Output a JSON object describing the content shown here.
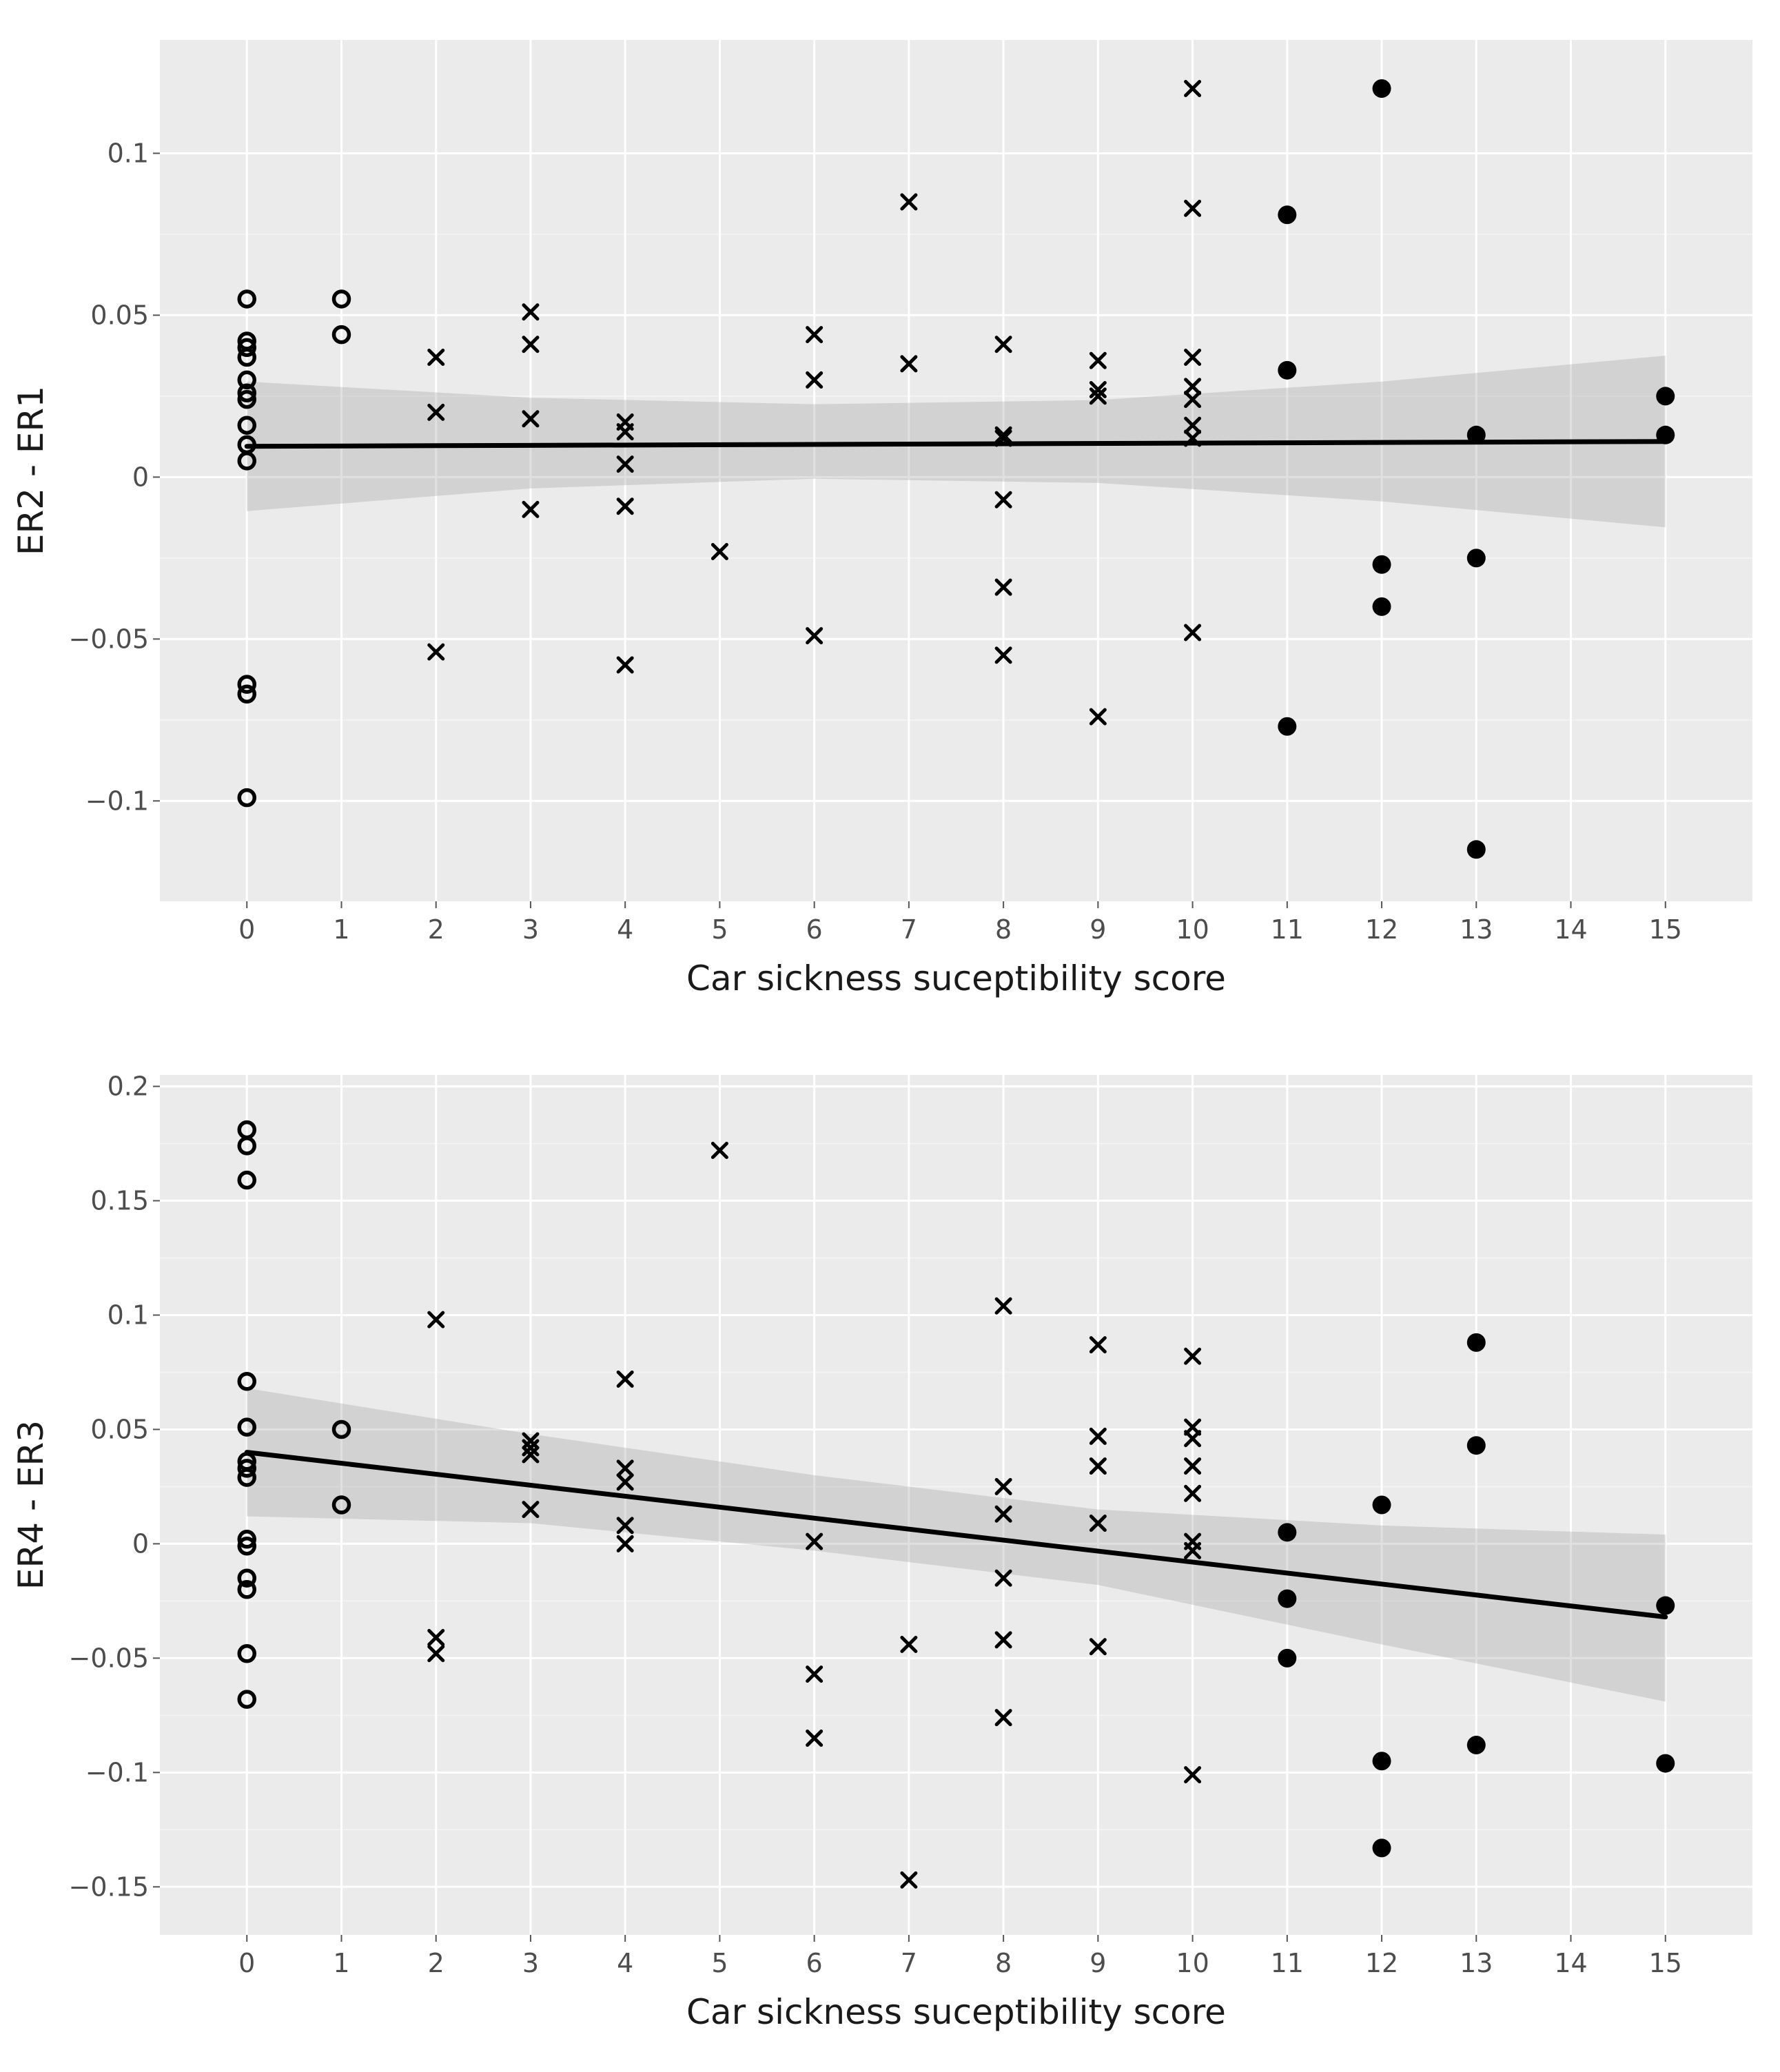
{
  "chart_data": [
    {
      "type": "scatter",
      "xlabel": "Car sickness suceptibility score",
      "ylabel": "ER2 - ER1",
      "xlim": [
        -0.92,
        15.92
      ],
      "ylim": [
        -0.131,
        0.135
      ],
      "xticks": [
        0,
        1,
        2,
        3,
        4,
        5,
        6,
        7,
        8,
        9,
        10,
        11,
        12,
        13,
        14,
        15
      ],
      "yticks": [
        0.1,
        0.05,
        0,
        -0.05,
        -0.1
      ],
      "ytick_labels": [
        "0.1",
        "0.05",
        "0",
        "−0.05",
        "−0.1"
      ],
      "grid": true,
      "fit_line": {
        "x0": 0,
        "y0": 0.0095,
        "x1": 15,
        "y1": 0.011
      },
      "confidence_band": {
        "x": [
          0,
          3,
          6,
          9,
          12,
          15
        ],
        "upper": [
          0.0295,
          0.0245,
          0.0225,
          0.0238,
          0.0295,
          0.0375
        ],
        "lower": [
          -0.0105,
          -0.0035,
          -0.0005,
          -0.0018,
          -0.0075,
          -0.0155
        ]
      },
      "series": [
        {
          "name": "open circle",
          "marker": "circle-open",
          "points": [
            [
              0,
              0.055
            ],
            [
              0,
              0.042
            ],
            [
              0,
              0.04
            ],
            [
              0,
              0.037
            ],
            [
              0,
              0.03
            ],
            [
              0,
              0.026
            ],
            [
              0,
              0.024
            ],
            [
              0,
              0.016
            ],
            [
              0,
              0.01
            ],
            [
              0,
              0.005
            ],
            [
              0,
              -0.064
            ],
            [
              0,
              -0.067
            ],
            [
              0,
              -0.099
            ],
            [
              1,
              0.055
            ],
            [
              1,
              0.044
            ]
          ]
        },
        {
          "name": "cross",
          "marker": "x",
          "points": [
            [
              2,
              0.037
            ],
            [
              2,
              0.02
            ],
            [
              2,
              -0.054
            ],
            [
              3,
              0.051
            ],
            [
              3,
              0.041
            ],
            [
              3,
              0.018
            ],
            [
              3,
              -0.01
            ],
            [
              4,
              0.017
            ],
            [
              4,
              0.014
            ],
            [
              4,
              0.004
            ],
            [
              4,
              -0.009
            ],
            [
              4,
              -0.058
            ],
            [
              5,
              -0.023
            ],
            [
              6,
              0.044
            ],
            [
              6,
              0.03
            ],
            [
              6,
              -0.049
            ],
            [
              7,
              0.085
            ],
            [
              7,
              0.035
            ],
            [
              8,
              0.041
            ],
            [
              8,
              0.013
            ],
            [
              8,
              0.012
            ],
            [
              8,
              -0.007
            ],
            [
              8,
              -0.034
            ],
            [
              8,
              -0.055
            ],
            [
              9,
              0.036
            ],
            [
              9,
              0.027
            ],
            [
              9,
              0.025
            ],
            [
              9,
              -0.074
            ],
            [
              10,
              0.12
            ],
            [
              10,
              0.083
            ],
            [
              10,
              0.037
            ],
            [
              10,
              0.028
            ],
            [
              10,
              0.024
            ],
            [
              10,
              0.016
            ],
            [
              10,
              0.012
            ],
            [
              10,
              -0.048
            ]
          ]
        },
        {
          "name": "filled circle",
          "marker": "circle-filled",
          "points": [
            [
              11,
              0.081
            ],
            [
              11,
              0.033
            ],
            [
              11,
              -0.077
            ],
            [
              12,
              0.12
            ],
            [
              12,
              -0.027
            ],
            [
              12,
              -0.04
            ],
            [
              13,
              0.013
            ],
            [
              13,
              -0.025
            ],
            [
              13,
              -0.115
            ],
            [
              15,
              0.025
            ],
            [
              15,
              0.013
            ]
          ]
        }
      ]
    },
    {
      "type": "scatter",
      "xlabel": "Car sickness suceptibility score",
      "ylabel": "ER4 - ER3",
      "xlim": [
        -0.92,
        15.92
      ],
      "ylim": [
        -0.171,
        0.205
      ],
      "xticks": [
        0,
        1,
        2,
        3,
        4,
        5,
        6,
        7,
        8,
        9,
        10,
        11,
        12,
        13,
        14,
        15
      ],
      "yticks": [
        0.2,
        0.15,
        0.1,
        0.05,
        0,
        -0.05,
        -0.1,
        -0.15
      ],
      "ytick_labels": [
        "0.2",
        "0.15",
        "0.1",
        "0.05",
        "0",
        "−0.05",
        "−0.1",
        "−0.15"
      ],
      "grid": true,
      "fit_line": {
        "x0": 0,
        "y0": 0.04,
        "x1": 15,
        "y1": -0.032
      },
      "confidence_band": {
        "x": [
          0,
          3,
          6,
          9,
          12,
          15
        ],
        "upper": [
          0.068,
          0.048,
          0.03,
          0.015,
          0.008,
          0.004
        ],
        "lower": [
          0.012,
          0.009,
          -0.003,
          -0.018,
          -0.044,
          -0.069
        ]
      },
      "series": [
        {
          "name": "open circle",
          "marker": "circle-open",
          "points": [
            [
              0,
              0.181
            ],
            [
              0,
              0.174
            ],
            [
              0,
              0.159
            ],
            [
              0,
              0.071
            ],
            [
              0,
              0.051
            ],
            [
              0,
              0.036
            ],
            [
              0,
              0.033
            ],
            [
              0,
              0.029
            ],
            [
              0,
              0.002
            ],
            [
              0,
              -0.001
            ],
            [
              0,
              -0.015
            ],
            [
              0,
              -0.02
            ],
            [
              0,
              -0.048
            ],
            [
              0,
              -0.068
            ],
            [
              1,
              0.05
            ],
            [
              1,
              0.017
            ]
          ]
        },
        {
          "name": "cross",
          "marker": "x",
          "points": [
            [
              2,
              0.098
            ],
            [
              2,
              -0.041
            ],
            [
              2,
              -0.048
            ],
            [
              3,
              0.045
            ],
            [
              3,
              0.042
            ],
            [
              3,
              0.039
            ],
            [
              3,
              0.015
            ],
            [
              4,
              0.072
            ],
            [
              4,
              0.033
            ],
            [
              4,
              0.027
            ],
            [
              4,
              0.008
            ],
            [
              4,
              0.0
            ],
            [
              5,
              0.172
            ],
            [
              6,
              0.001
            ],
            [
              6,
              -0.057
            ],
            [
              6,
              -0.085
            ],
            [
              7,
              -0.044
            ],
            [
              7,
              -0.147
            ],
            [
              8,
              0.104
            ],
            [
              8,
              0.025
            ],
            [
              8,
              0.013
            ],
            [
              8,
              -0.015
            ],
            [
              8,
              -0.042
            ],
            [
              8,
              -0.076
            ],
            [
              9,
              0.087
            ],
            [
              9,
              0.047
            ],
            [
              9,
              0.034
            ],
            [
              9,
              0.009
            ],
            [
              9,
              -0.045
            ],
            [
              10,
              0.082
            ],
            [
              10,
              0.051
            ],
            [
              10,
              0.046
            ],
            [
              10,
              0.034
            ],
            [
              10,
              0.022
            ],
            [
              10,
              0.001
            ],
            [
              10,
              -0.003
            ],
            [
              10,
              -0.101
            ]
          ]
        },
        {
          "name": "filled circle",
          "marker": "circle-filled",
          "points": [
            [
              11,
              0.005
            ],
            [
              11,
              -0.024
            ],
            [
              11,
              -0.05
            ],
            [
              12,
              0.017
            ],
            [
              12,
              -0.095
            ],
            [
              12,
              -0.133
            ],
            [
              13,
              0.088
            ],
            [
              13,
              0.043
            ],
            [
              13,
              -0.088
            ],
            [
              15,
              -0.027
            ],
            [
              15,
              -0.096
            ]
          ]
        }
      ]
    }
  ]
}
